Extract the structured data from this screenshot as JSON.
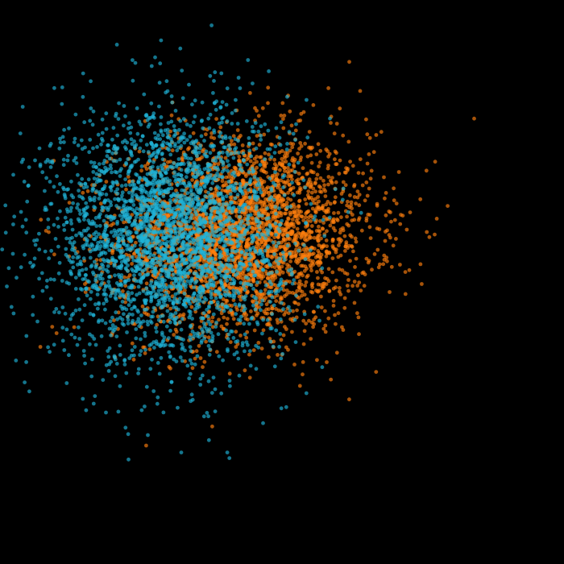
{
  "chart_data": {
    "type": "scatter",
    "background": "#000000",
    "grid": false,
    "axes_visible": false,
    "legend": "none",
    "title": "",
    "xlabel": "",
    "ylabel": "",
    "xlim": [
      -6,
      6
    ],
    "ylim": [
      -6,
      6
    ],
    "point_opacity": 0.65,
    "blend": "additive",
    "series": [
      {
        "color": "#ff7f0e",
        "count": 3000,
        "center": [
          -0.8,
          1.0
        ],
        "spread": [
          1.35,
          1.05
        ],
        "correlation": 0.05
      },
      {
        "color": "#1fb4d8",
        "count": 3000,
        "center": [
          -2.4,
          1.0
        ],
        "spread": [
          1.25,
          1.35
        ],
        "correlation": 0.0
      }
    ]
  }
}
